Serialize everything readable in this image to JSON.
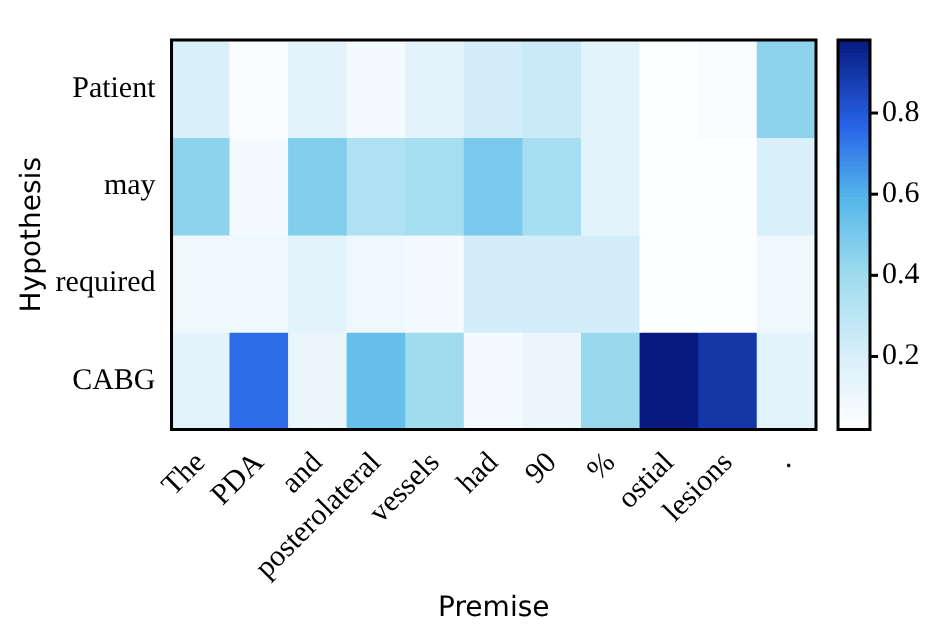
{
  "chart_data": {
    "type": "heatmap",
    "xlabel": "Premise",
    "ylabel": "Hypothesis",
    "categories": [
      "The",
      "PDA",
      "and",
      "posterolateral",
      "vessels",
      "had",
      "90",
      "%",
      "ostial",
      "lesions",
      "."
    ],
    "y_categories": [
      "Patient",
      "may",
      "required",
      "CABG"
    ],
    "cells": [
      [
        0.2,
        0.05,
        0.15,
        0.07,
        0.15,
        0.22,
        0.25,
        0.15,
        0.03,
        0.05,
        0.45
      ],
      [
        0.45,
        0.07,
        0.48,
        0.35,
        0.38,
        0.5,
        0.38,
        0.15,
        0.03,
        0.03,
        0.2
      ],
      [
        0.1,
        0.1,
        0.15,
        0.1,
        0.08,
        0.22,
        0.22,
        0.22,
        0.03,
        0.03,
        0.1
      ],
      [
        0.15,
        0.75,
        0.12,
        0.55,
        0.4,
        0.07,
        0.12,
        0.42,
        0.98,
        0.9,
        0.15
      ]
    ],
    "clim": [
      0.02,
      0.98
    ],
    "cticks": [
      0.2,
      0.4,
      0.6,
      0.8
    ]
  }
}
